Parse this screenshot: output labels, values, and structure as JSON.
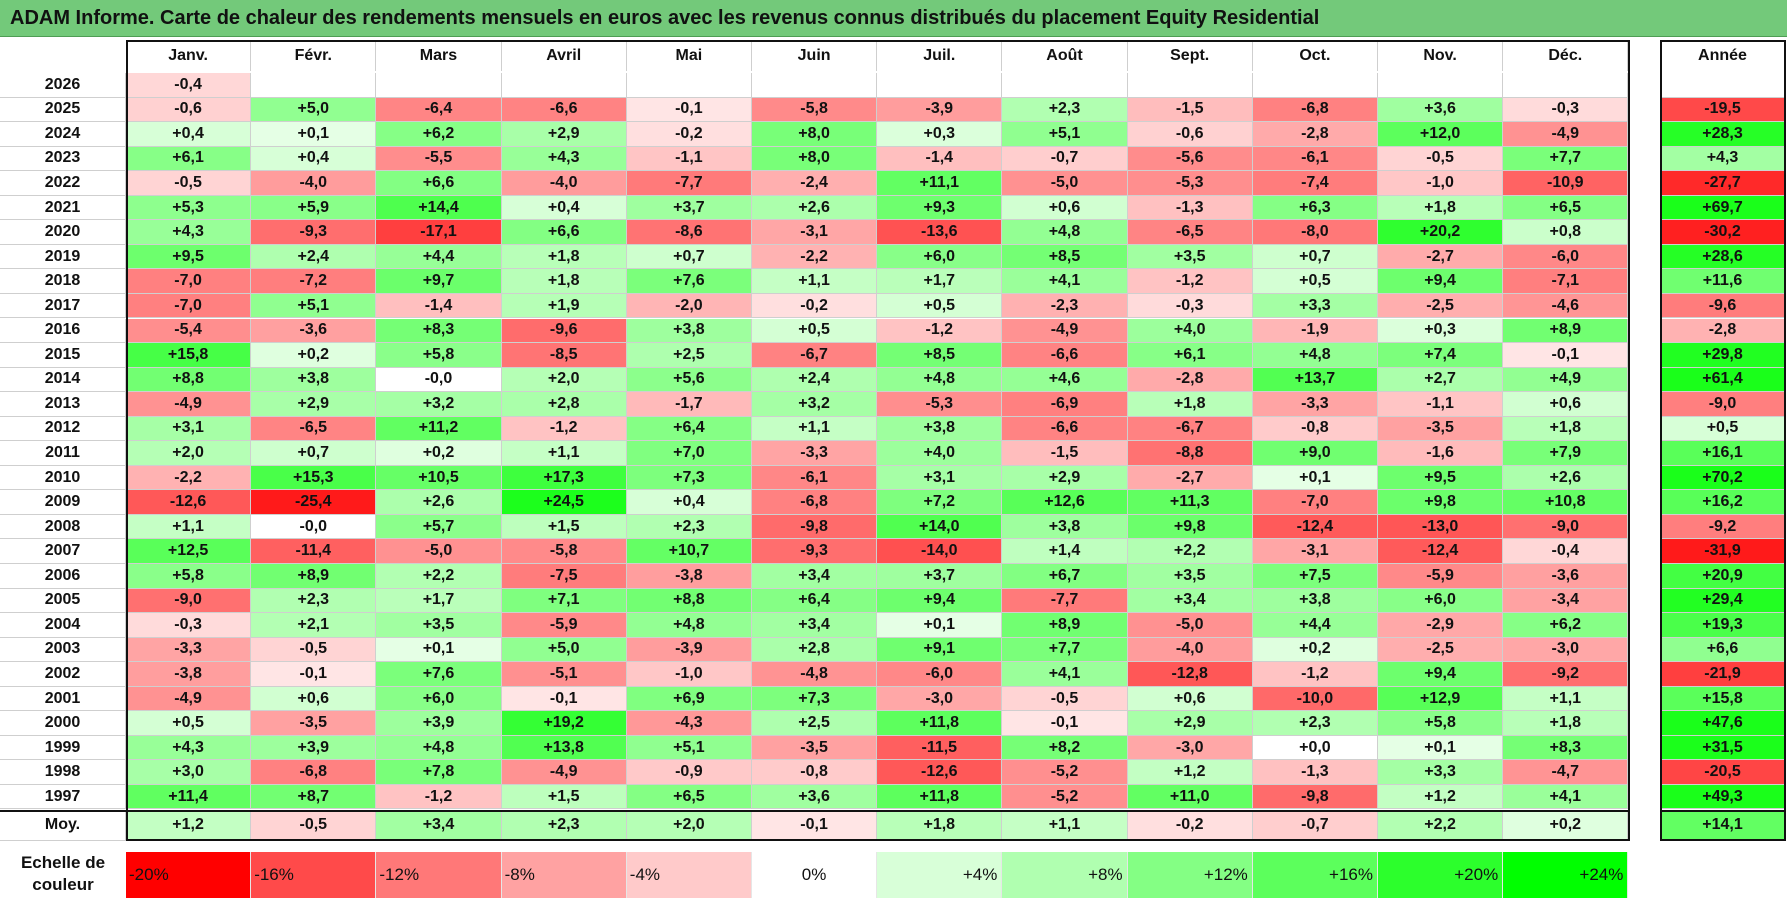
{
  "title": "ADAM Informe. Carte de chaleur des rendements mensuels en euros avec les revenus connus distribués du placement Equity Residential",
  "chart_data": {
    "type": "heatmap",
    "title": "ADAM Informe. Carte de chaleur des rendements mensuels en euros avec les revenus connus distribués du placement Equity Residential",
    "columns": [
      "Janv.",
      "Févr.",
      "Mars",
      "Avril",
      "Mai",
      "Juin",
      "Juil.",
      "Août",
      "Sept.",
      "Oct.",
      "Nov.",
      "Déc."
    ],
    "year_header": "Année",
    "rows": [
      {
        "year": "2026",
        "months": [
          "-0,4",
          "",
          "",
          "",
          "",
          "",
          "",
          "",
          "",
          "",
          "",
          ""
        ],
        "annual": ""
      },
      {
        "year": "2025",
        "months": [
          "-0,6",
          "+5,0",
          "-6,4",
          "-6,6",
          "-0,1",
          "-5,8",
          "-3,9",
          "+2,3",
          "-1,5",
          "-6,8",
          "+3,6",
          "-0,3"
        ],
        "annual": "-19,5"
      },
      {
        "year": "2024",
        "months": [
          "+0,4",
          "+0,1",
          "+6,2",
          "+2,9",
          "-0,2",
          "+8,0",
          "+0,3",
          "+5,1",
          "-0,6",
          "-2,8",
          "+12,0",
          "-4,9"
        ],
        "annual": "+28,3"
      },
      {
        "year": "2023",
        "months": [
          "+6,1",
          "+0,4",
          "-5,5",
          "+4,3",
          "-1,1",
          "+8,0",
          "-1,4",
          "-0,7",
          "-5,6",
          "-6,1",
          "-0,5",
          "+7,7"
        ],
        "annual": "+4,3"
      },
      {
        "year": "2022",
        "months": [
          "-0,5",
          "-4,0",
          "+6,6",
          "-4,0",
          "-7,7",
          "-2,4",
          "+11,1",
          "-5,0",
          "-5,3",
          "-7,4",
          "-1,0",
          "-10,9"
        ],
        "annual": "-27,7"
      },
      {
        "year": "2021",
        "months": [
          "+5,3",
          "+5,9",
          "+14,4",
          "+0,4",
          "+3,7",
          "+2,6",
          "+9,3",
          "+0,6",
          "-1,3",
          "+6,3",
          "+1,8",
          "+6,5"
        ],
        "annual": "+69,7"
      },
      {
        "year": "2020",
        "months": [
          "+4,3",
          "-9,3",
          "-17,1",
          "+6,6",
          "-8,6",
          "-3,1",
          "-13,6",
          "+4,8",
          "-6,5",
          "-8,0",
          "+20,2",
          "+0,8"
        ],
        "annual": "-30,2"
      },
      {
        "year": "2019",
        "months": [
          "+9,5",
          "+2,4",
          "+4,4",
          "+1,8",
          "+0,7",
          "-2,2",
          "+6,0",
          "+8,5",
          "+3,5",
          "+0,7",
          "-2,7",
          "-6,0"
        ],
        "annual": "+28,6"
      },
      {
        "year": "2018",
        "months": [
          "-7,0",
          "-7,2",
          "+9,7",
          "+1,8",
          "+7,6",
          "+1,1",
          "+1,7",
          "+4,1",
          "-1,2",
          "+0,5",
          "+9,4",
          "-7,1"
        ],
        "annual": "+11,6"
      },
      {
        "year": "2017",
        "months": [
          "-7,0",
          "+5,1",
          "-1,4",
          "+1,9",
          "-2,0",
          "-0,2",
          "+0,5",
          "-2,3",
          "-0,3",
          "+3,3",
          "-2,5",
          "-4,6"
        ],
        "annual": "-9,6"
      },
      {
        "year": "2016",
        "months": [
          "-5,4",
          "-3,6",
          "+8,3",
          "-9,6",
          "+3,8",
          "+0,5",
          "-1,2",
          "-4,9",
          "+4,0",
          "-1,9",
          "+0,3",
          "+8,9"
        ],
        "annual": "-2,8"
      },
      {
        "year": "2015",
        "months": [
          "+15,8",
          "+0,2",
          "+5,8",
          "-8,5",
          "+2,5",
          "-6,7",
          "+8,5",
          "-6,6",
          "+6,1",
          "+4,8",
          "+7,4",
          "-0,1"
        ],
        "annual": "+29,8"
      },
      {
        "year": "2014",
        "months": [
          "+8,8",
          "+3,8",
          "-0,0",
          "+2,0",
          "+5,6",
          "+2,4",
          "+4,8",
          "+4,6",
          "-2,8",
          "+13,7",
          "+2,7",
          "+4,9"
        ],
        "annual": "+61,4"
      },
      {
        "year": "2013",
        "months": [
          "-4,9",
          "+2,9",
          "+3,2",
          "+2,8",
          "-1,7",
          "+3,2",
          "-5,3",
          "-6,9",
          "+1,8",
          "-3,3",
          "-1,1",
          "+0,6"
        ],
        "annual": "-9,0"
      },
      {
        "year": "2012",
        "months": [
          "+3,1",
          "-6,5",
          "+11,2",
          "-1,2",
          "+6,4",
          "+1,1",
          "+3,8",
          "-6,6",
          "-6,7",
          "-0,8",
          "-3,5",
          "+1,8"
        ],
        "annual": "+0,5"
      },
      {
        "year": "2011",
        "months": [
          "+2,0",
          "+0,7",
          "+0,2",
          "+1,1",
          "+7,0",
          "-3,3",
          "+4,0",
          "-1,5",
          "-8,8",
          "+9,0",
          "-1,6",
          "+7,9"
        ],
        "annual": "+16,1"
      },
      {
        "year": "2010",
        "months": [
          "-2,2",
          "+15,3",
          "+10,5",
          "+17,3",
          "+7,3",
          "-6,1",
          "+3,1",
          "+2,9",
          "-2,7",
          "+0,1",
          "+9,5",
          "+2,6"
        ],
        "annual": "+70,2"
      },
      {
        "year": "2009",
        "months": [
          "-12,6",
          "-25,4",
          "+2,6",
          "+24,5",
          "+0,4",
          "-6,8",
          "+7,2",
          "+12,6",
          "+11,3",
          "-7,0",
          "+9,8",
          "+10,8"
        ],
        "annual": "+16,2"
      },
      {
        "year": "2008",
        "months": [
          "+1,1",
          "-0,0",
          "+5,7",
          "+1,5",
          "+2,3",
          "-9,8",
          "+14,0",
          "+3,8",
          "+9,8",
          "-12,4",
          "-13,0",
          "-9,0"
        ],
        "annual": "-9,2"
      },
      {
        "year": "2007",
        "months": [
          "+12,5",
          "-11,4",
          "-5,0",
          "-5,8",
          "+10,7",
          "-9,3",
          "-14,0",
          "+1,4",
          "+2,2",
          "-3,1",
          "-12,4",
          "-0,4"
        ],
        "annual": "-31,9"
      },
      {
        "year": "2006",
        "months": [
          "+5,8",
          "+8,9",
          "+2,2",
          "-7,5",
          "-3,8",
          "+3,4",
          "+3,7",
          "+6,7",
          "+3,5",
          "+7,5",
          "-5,9",
          "-3,6"
        ],
        "annual": "+20,9"
      },
      {
        "year": "2005",
        "months": [
          "-9,0",
          "+2,3",
          "+1,7",
          "+7,1",
          "+8,8",
          "+6,4",
          "+9,4",
          "-7,7",
          "+3,4",
          "+3,8",
          "+6,0",
          "-3,4"
        ],
        "annual": "+29,4"
      },
      {
        "year": "2004",
        "months": [
          "-0,3",
          "+2,1",
          "+3,5",
          "-5,9",
          "+4,8",
          "+3,4",
          "+0,1",
          "+8,9",
          "-5,0",
          "+4,4",
          "-2,9",
          "+6,2"
        ],
        "annual": "+19,3"
      },
      {
        "year": "2003",
        "months": [
          "-3,3",
          "-0,5",
          "+0,1",
          "+5,0",
          "-3,9",
          "+2,8",
          "+9,1",
          "+7,7",
          "-4,0",
          "+0,2",
          "-2,5",
          "-3,0"
        ],
        "annual": "+6,6"
      },
      {
        "year": "2002",
        "months": [
          "-3,8",
          "-0,1",
          "+7,6",
          "-5,1",
          "-1,0",
          "-4,8",
          "-6,0",
          "+4,1",
          "-12,8",
          "-1,2",
          "+9,4",
          "-9,2"
        ],
        "annual": "-21,9"
      },
      {
        "year": "2001",
        "months": [
          "-4,9",
          "+0,6",
          "+6,0",
          "-0,1",
          "+6,9",
          "+7,3",
          "-3,0",
          "-0,5",
          "+0,6",
          "-10,0",
          "+12,9",
          "+1,1"
        ],
        "annual": "+15,8"
      },
      {
        "year": "2000",
        "months": [
          "+0,5",
          "-3,5",
          "+3,9",
          "+19,2",
          "-4,3",
          "+2,5",
          "+11,8",
          "-0,1",
          "+2,9",
          "+2,3",
          "+5,8",
          "+1,8"
        ],
        "annual": "+47,6"
      },
      {
        "year": "1999",
        "months": [
          "+4,3",
          "+3,9",
          "+4,8",
          "+13,8",
          "+5,1",
          "-3,5",
          "-11,5",
          "+8,2",
          "-3,0",
          "+0,0",
          "+0,1",
          "+8,3"
        ],
        "annual": "+31,5"
      },
      {
        "year": "1998",
        "months": [
          "+3,0",
          "-6,8",
          "+7,8",
          "-4,9",
          "-0,9",
          "-0,8",
          "-12,6",
          "-5,2",
          "+1,2",
          "-1,3",
          "+3,3",
          "-4,7"
        ],
        "annual": "-20,5"
      },
      {
        "year": "1997",
        "months": [
          "+11,4",
          "+8,7",
          "-1,2",
          "+1,5",
          "+6,5",
          "+3,6",
          "+11,8",
          "-5,2",
          "+11,0",
          "-9,8",
          "+1,2",
          "+4,1"
        ],
        "annual": "+49,3"
      }
    ],
    "average": {
      "label": "Moy.",
      "months": [
        "+1,2",
        "-0,5",
        "+3,4",
        "+2,3",
        "+2,0",
        "-0,1",
        "+1,8",
        "+1,1",
        "-0,2",
        "-0,7",
        "+2,2",
        "+0,2"
      ],
      "annual": "+14,1"
    },
    "color_scale": {
      "label": "Echelle de couleur",
      "stops": [
        "-20%",
        "-16%",
        "-12%",
        "-8%",
        "-4%",
        "0%",
        "+4%",
        "+8%",
        "+12%",
        "+16%",
        "+20%",
        "+24%"
      ],
      "colors": [
        "#ff0000",
        "#ff4a4a",
        "#ff7878",
        "#ffa2a2",
        "#ffcaca",
        "#ffffff",
        "#d8ffd8",
        "#b0ffb0",
        "#84ff84",
        "#5cff5c",
        "#2cff2c",
        "#00ff00"
      ]
    },
    "colors": {
      "title_bg": "#73c97a",
      "negative": "#ff0000",
      "positive": "#00ff00"
    }
  }
}
